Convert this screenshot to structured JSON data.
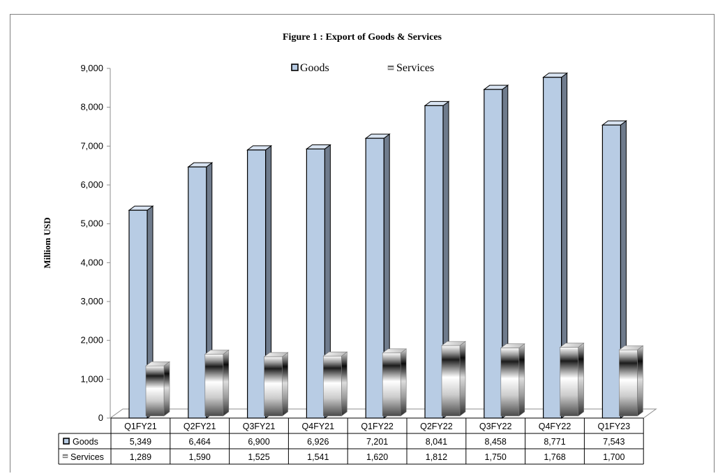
{
  "chart_data": {
    "type": "bar",
    "title": "Figure 1 : Export of Goods & Services",
    "ylabel": "Milliom USD",
    "xlabel": "",
    "ylim": [
      0,
      9000
    ],
    "yticks": [
      "0",
      "1,000",
      "2,000",
      "3,000",
      "4,000",
      "5,000",
      "6,000",
      "7,000",
      "8,000",
      "9,000"
    ],
    "categories": [
      "Q1FY21",
      "Q2FY21",
      "Q3FY21",
      "Q4FY21",
      "Q1FY22",
      "Q2FY22",
      "Q3FY22",
      "Q4FY22",
      "Q1FY23"
    ],
    "series": [
      {
        "name": "Goods",
        "values": [
          5349,
          6464,
          6900,
          6926,
          7201,
          8041,
          8458,
          8771,
          7543
        ],
        "labels": [
          "5,349",
          "6,464",
          "6,900",
          "6,926",
          "7,201",
          "8,041",
          "8,458",
          "8,771",
          "7,543"
        ],
        "color": "#b8cce4"
      },
      {
        "name": "Services",
        "values": [
          1289,
          1590,
          1525,
          1541,
          1620,
          1812,
          1750,
          1768,
          1700
        ],
        "labels": [
          "1,289",
          "1,590",
          "1,525",
          "1,541",
          "1,620",
          "1,812",
          "1,750",
          "1,768",
          "1,700"
        ],
        "color": "#e0e0e0"
      }
    ],
    "legend": "top-center",
    "grid": false,
    "data_table": true
  }
}
